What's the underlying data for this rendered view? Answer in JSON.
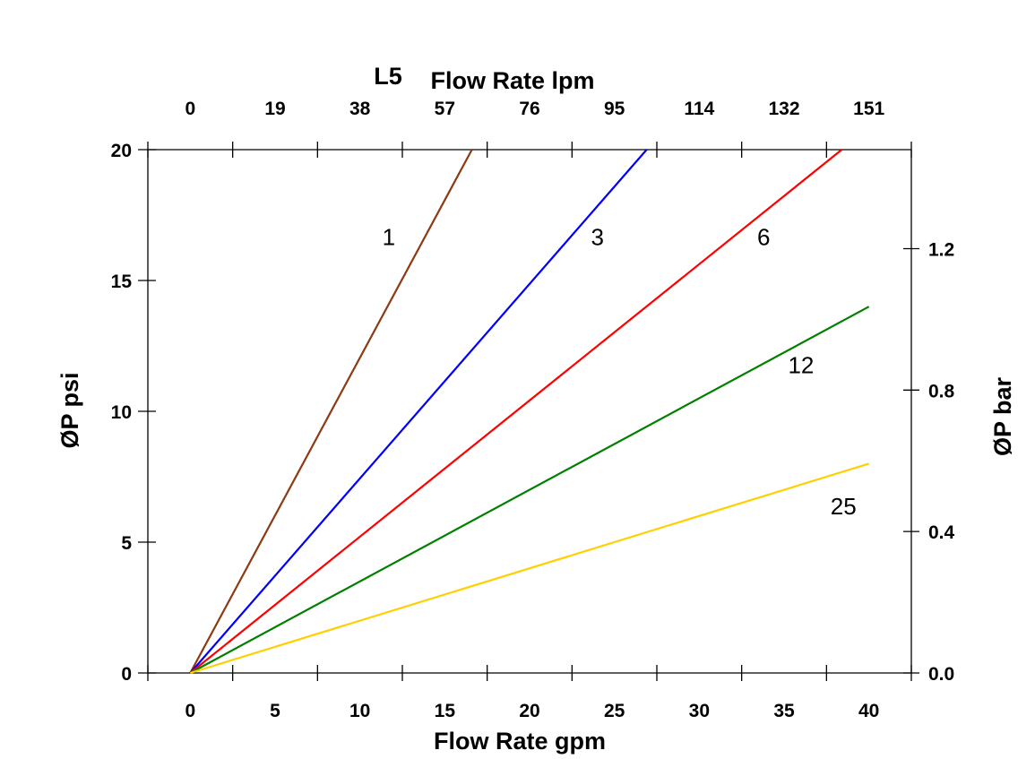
{
  "chart_data": {
    "type": "line",
    "title": "",
    "xlabel": "Flow Rate gpm",
    "ylabel": "ØP psi",
    "x2label_prefix": "L5",
    "x2label": "Flow Rate lpm",
    "y2label": "ØP bar",
    "xlim": [
      -2.5,
      42.5
    ],
    "ylim": [
      0,
      20
    ],
    "y2lim": [
      0,
      1.48
    ],
    "x_ticks": [
      0,
      5,
      10,
      15,
      20,
      25,
      30,
      35,
      40
    ],
    "x_tick_labels": [
      "0",
      "5",
      "10",
      "15",
      "20",
      "25",
      "30",
      "35",
      "40"
    ],
    "x2_tick_labels": [
      "0",
      "19",
      "38",
      "57",
      "76",
      "95",
      "114",
      "132",
      "151"
    ],
    "y_ticks": [
      0,
      5,
      10,
      15,
      20
    ],
    "y_tick_labels": [
      "0",
      "5",
      "10",
      "15",
      "20"
    ],
    "y2_ticks": [
      0.0,
      0.4,
      0.8,
      1.2
    ],
    "y2_tick_labels": [
      "0.0",
      "0.4",
      "0.8",
      "1.2"
    ],
    "grid": false,
    "series": [
      {
        "label": "1",
        "color": "#8B3A12",
        "x": [
          0,
          16.6
        ],
        "y": [
          0,
          20
        ],
        "label_at": [
          11.7,
          16.7
        ]
      },
      {
        "label": "3",
        "color": "#0000FF",
        "x": [
          0,
          26.9
        ],
        "y": [
          0,
          20
        ],
        "label_at": [
          24.0,
          16.7
        ]
      },
      {
        "label": "6",
        "color": "#FF0000",
        "x": [
          0,
          38.4
        ],
        "y": [
          0,
          20
        ],
        "label_at": [
          33.8,
          16.7
        ]
      },
      {
        "label": "12",
        "color": "#008000",
        "x": [
          0,
          40
        ],
        "y": [
          0,
          14.0
        ],
        "label_at": [
          36.0,
          11.8
        ]
      },
      {
        "label": "25",
        "color": "#FFD000",
        "x": [
          0,
          40
        ],
        "y": [
          0,
          8.0
        ],
        "label_at": [
          38.5,
          6.4
        ]
      }
    ]
  }
}
